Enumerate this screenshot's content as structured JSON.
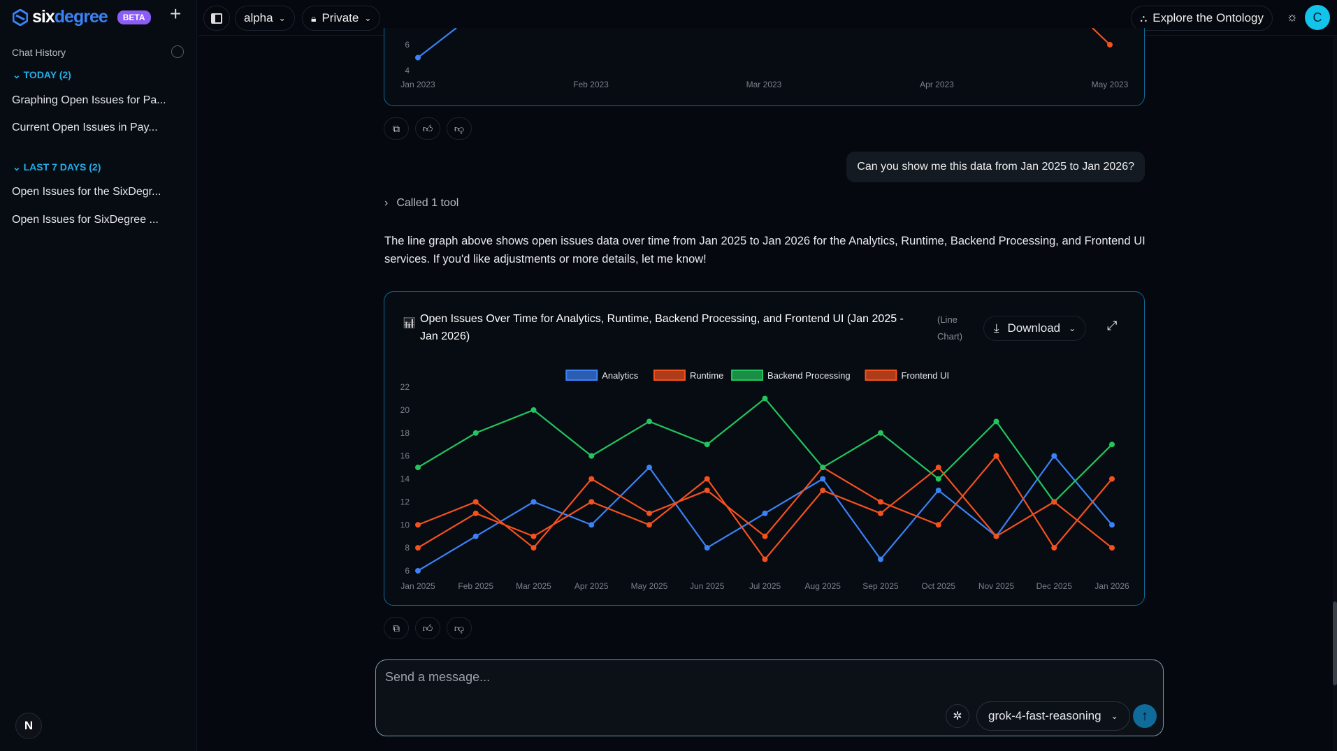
{
  "sidebar": {
    "brand_a": "six",
    "brand_b": "degree",
    "beta": "BETA",
    "chat_history": "Chat History",
    "sections": [
      {
        "label": "TODAY (2)",
        "items": [
          "Graphing Open Issues for Pa...",
          "Current Open Issues in Pay..."
        ]
      },
      {
        "label": "LAST 7 DAYS (2)",
        "items": [
          "Open Issues for the SixDegr...",
          "Open Issues for SixDegree ..."
        ]
      }
    ],
    "user_initial_bottom": "N"
  },
  "header": {
    "workspace": "alpha",
    "visibility": "Private",
    "explore": "Explore the Ontology",
    "avatar": "C"
  },
  "chat": {
    "user_message": "Can you show me this data from Jan 2025 to Jan 2026?",
    "tool_call": "Called 1 tool",
    "assistant_text": "The line graph above shows open issues data over time from Jan 2025 to Jan 2026 for the Analytics, Runtime, Backend Processing, and Frontend UI services. If you'd like adjustments or more details, let me know!",
    "chart_type_label": "(Line Chart)",
    "download": "Download"
  },
  "input": {
    "placeholder": "Send a message...",
    "model": "grok-4-fast-reasoning"
  },
  "colors": {
    "analytics": "#3b82f6",
    "runtime": "#f4511e",
    "backend": "#22c55e",
    "frontend": "#f4511e",
    "accent": "#12c4ec"
  },
  "chart_data": [
    {
      "type": "line",
      "partial": true,
      "categories": [
        "Jan 2023",
        "Feb 2023",
        "Mar 2023",
        "Apr 2023",
        "May 2023"
      ],
      "yticks": [
        4,
        6
      ],
      "series": [
        {
          "name": "Analytics",
          "values": [
            5,
            null,
            null,
            null,
            null
          ]
        },
        {
          "name": "Frontend UI",
          "values": [
            null,
            null,
            null,
            null,
            6
          ]
        }
      ]
    },
    {
      "type": "line",
      "title": "Open Issues Over Time for Analytics, Runtime, Backend Processing, and Frontend UI (Jan 2025 - Jan 2026)",
      "categories": [
        "Jan 2025",
        "Feb 2025",
        "Mar 2025",
        "Apr 2025",
        "May 2025",
        "Jun 2025",
        "Jul 2025",
        "Aug 2025",
        "Sep 2025",
        "Oct 2025",
        "Nov 2025",
        "Dec 2025",
        "Jan 2026"
      ],
      "ylim": [
        6,
        22
      ],
      "yticks": [
        6,
        8,
        10,
        12,
        14,
        16,
        18,
        20,
        22
      ],
      "legend": "top",
      "grid": false,
      "series": [
        {
          "name": "Analytics",
          "color": "#3b82f6",
          "values": [
            6,
            9,
            12,
            10,
            15,
            8,
            11,
            14,
            7,
            13,
            9,
            16,
            10
          ]
        },
        {
          "name": "Runtime",
          "color": "#f4511e",
          "values": [
            10,
            12,
            8,
            14,
            11,
            13,
            9,
            15,
            12,
            10,
            16,
            8,
            14
          ]
        },
        {
          "name": "Backend Processing",
          "color": "#22c55e",
          "values": [
            15,
            18,
            20,
            16,
            19,
            17,
            21,
            15,
            18,
            14,
            19,
            12,
            17
          ]
        },
        {
          "name": "Frontend UI",
          "color": "#f4511e",
          "values": [
            8,
            11,
            9,
            12,
            10,
            14,
            7,
            13,
            11,
            15,
            9,
            12,
            8
          ]
        }
      ]
    }
  ]
}
